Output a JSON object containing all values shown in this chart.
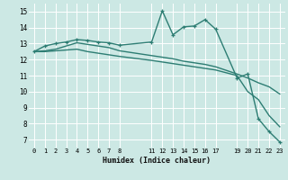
{
  "xlabel": "Humidex (Indice chaleur)",
  "bg_color": "#cce8e4",
  "grid_color": "#ffffff",
  "line_color": "#2d7d73",
  "xlim": [
    -0.5,
    23.5
  ],
  "ylim": [
    6.5,
    15.5
  ],
  "yticks": [
    7,
    8,
    9,
    10,
    11,
    12,
    13,
    14,
    15
  ],
  "xticks": [
    0,
    1,
    2,
    3,
    4,
    5,
    6,
    7,
    8,
    11,
    12,
    13,
    14,
    15,
    16,
    17,
    19,
    20,
    21,
    22,
    23
  ],
  "series1_x": [
    0,
    1,
    2,
    3,
    4,
    5,
    6,
    7,
    8,
    11,
    12,
    13,
    14,
    15,
    16,
    17,
    19,
    20,
    21,
    22,
    23
  ],
  "series1_y": [
    12.5,
    12.85,
    13.0,
    13.1,
    13.25,
    13.2,
    13.1,
    13.05,
    12.9,
    13.1,
    15.05,
    13.55,
    14.05,
    14.1,
    14.5,
    13.9,
    10.85,
    11.1,
    8.3,
    7.5,
    6.85
  ],
  "series2_x": [
    0,
    1,
    2,
    3,
    4,
    5,
    6,
    7,
    8,
    11,
    12,
    13,
    14,
    15,
    16,
    17,
    19,
    20,
    21,
    22,
    23
  ],
  "series2_y": [
    12.5,
    12.5,
    12.55,
    12.6,
    12.65,
    12.5,
    12.4,
    12.3,
    12.2,
    11.95,
    11.85,
    11.75,
    11.65,
    11.55,
    11.45,
    11.35,
    11.0,
    10.0,
    9.5,
    8.5,
    7.8
  ],
  "series3_x": [
    0,
    1,
    2,
    3,
    4,
    5,
    6,
    7,
    8,
    11,
    12,
    13,
    14,
    15,
    16,
    17,
    19,
    20,
    21,
    22,
    23
  ],
  "series3_y": [
    12.5,
    12.55,
    12.65,
    12.85,
    13.05,
    12.95,
    12.85,
    12.75,
    12.55,
    12.25,
    12.15,
    12.05,
    11.9,
    11.8,
    11.7,
    11.55,
    11.1,
    10.85,
    10.55,
    10.3,
    9.85
  ]
}
